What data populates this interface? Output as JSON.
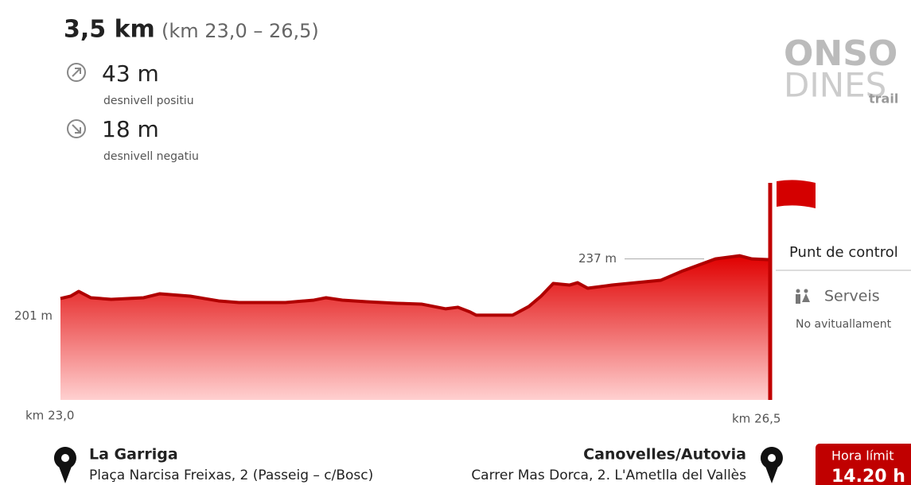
{
  "header": {
    "distance": "3,5 km",
    "range": "(km 23,0 – 26,5)",
    "ascent": "43 m",
    "ascent_label": "desnivell positiu",
    "descent": "18 m",
    "descent_label": "desnivell negatiu"
  },
  "logo": [
    "ONSO",
    "DINES",
    "trail"
  ],
  "chart_data": {
    "type": "area",
    "color": "#d40000",
    "x": [
      23.0,
      23.05,
      23.09,
      23.15,
      23.25,
      23.41,
      23.49,
      23.64,
      23.78,
      23.88,
      24.11,
      24.25,
      24.31,
      24.39,
      24.51,
      24.66,
      24.78,
      24.9,
      24.96,
      25.02,
      25.05,
      25.23,
      25.31,
      25.37,
      25.43,
      25.51,
      25.55,
      25.6,
      25.72,
      25.84,
      25.96,
      26.07,
      26.23,
      26.35,
      26.41,
      26.5
    ],
    "values": [
      212,
      213.5,
      216.5,
      212.5,
      211.5,
      212.5,
      215,
      213.5,
      210.5,
      209.5,
      209.5,
      211,
      212.5,
      211,
      210,
      209,
      208.5,
      205.5,
      206.5,
      203.5,
      201.5,
      201.5,
      207,
      213.5,
      221.5,
      220.5,
      222,
      218.5,
      220.5,
      222,
      223.5,
      229.5,
      237,
      239,
      237,
      236.5
    ],
    "xlim": [
      23.0,
      26.5
    ],
    "ylim": [
      148,
      285
    ],
    "start_label": "km 23,0",
    "end_label": "km 26,5",
    "annotations": [
      {
        "text": "201 m",
        "y": 201
      },
      {
        "text": "237 m",
        "y": 237
      }
    ]
  },
  "checkpoint": {
    "title": "Punt de control",
    "services": "Serveis",
    "note": "No avituallament"
  },
  "start": {
    "name": "La Garriga",
    "address": "Plaça Narcisa Freixas, 2 (Passeig – c/Bosc)"
  },
  "end": {
    "name": "Canovelles/Autovia",
    "address": "Carrer Mas Dorca, 2. L'Ametlla del Vallès"
  },
  "limit": {
    "label": "Hora límit",
    "time": "14.20 h"
  }
}
